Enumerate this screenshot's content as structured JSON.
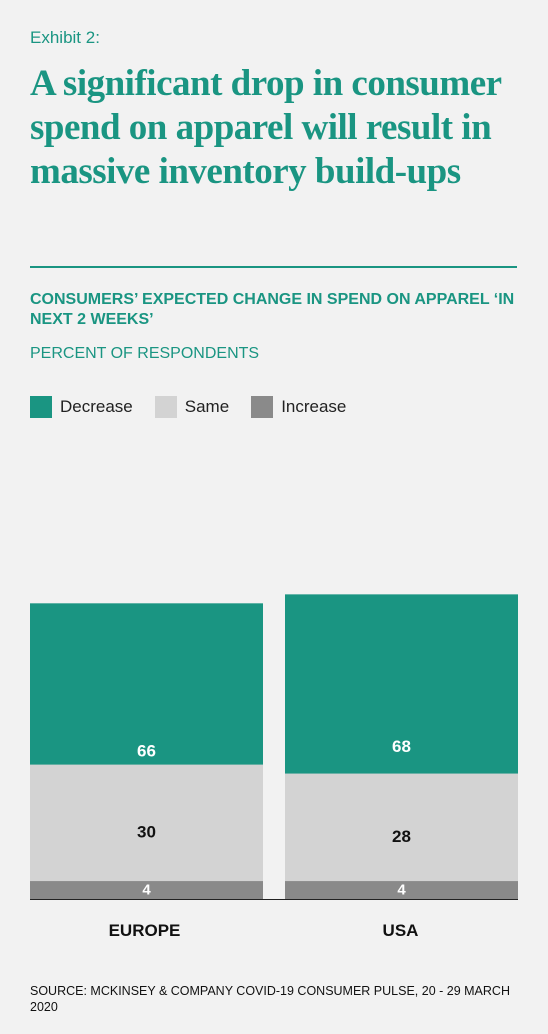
{
  "exhibit": "Exhibit 2:",
  "headline": "A significant drop in consumer spend on apparel will result in massive inventory build-ups",
  "subtitle": "CONSUMERS’ EXPECTED CHANGE IN SPEND ON APPAREL ‘IN NEXT 2 WEEKS’",
  "units": "PERCENT OF RESPONDENTS",
  "source": "SOURCE: MCKINSEY & COMPANY COVID-19 CONSUMER PULSE, 20 - 29 MARCH 2020",
  "colors": {
    "decrease": "#1a9582",
    "same": "#d3d3d3",
    "increase": "#8a8a8a",
    "accent": "#1a9582"
  },
  "chart_data": {
    "type": "bar",
    "stacked": true,
    "title": "CONSUMERS’ EXPECTED CHANGE IN SPEND ON APPAREL ‘IN NEXT 2 WEEKS’",
    "ylabel": "PERCENT OF RESPONDENTS",
    "ylim": [
      0,
      100
    ],
    "legend": "top-left",
    "grid": false,
    "categories": [
      "EUROPE",
      "USA"
    ],
    "series": [
      {
        "name": "Decrease",
        "values": [
          66,
          68
        ]
      },
      {
        "name": "Same",
        "values": [
          30,
          28
        ]
      },
      {
        "name": "Increase",
        "values": [
          4,
          4
        ]
      }
    ]
  }
}
